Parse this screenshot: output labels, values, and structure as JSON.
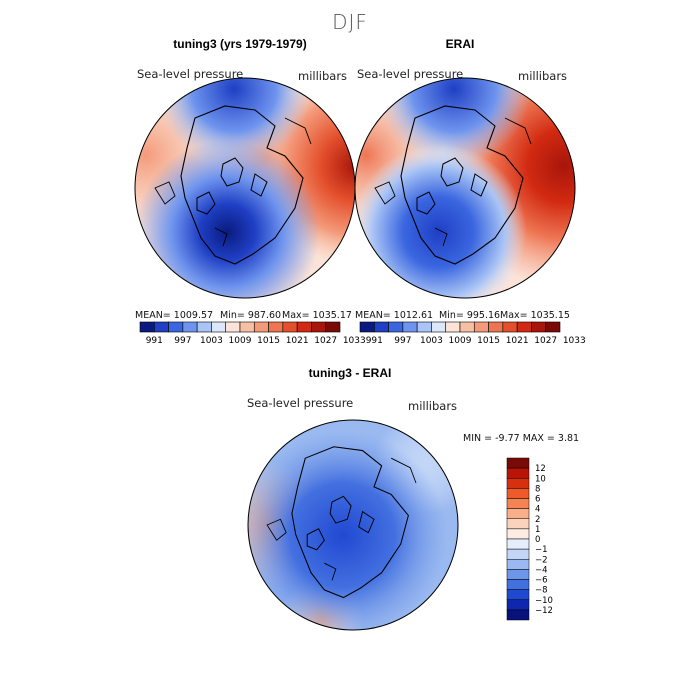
{
  "figure": {
    "season": "DJF"
  },
  "panels": [
    {
      "title": "tuning3 (yrs 1979-1979)",
      "variable": "Sea-level pressure",
      "units": "millibars",
      "stats": {
        "mean_label": "MEAN= 1009.57",
        "min_label": "Min= 987.60",
        "max_label": "Max= 1035.17"
      }
    },
    {
      "title": "ERAI",
      "variable": "Sea-level pressure",
      "units": "millibars",
      "stats": {
        "mean_label": "MEAN= 1012.61",
        "min_label": "Min= 995.16",
        "max_label": "Max= 1035.15"
      }
    },
    {
      "title": "tuning3 - ERAI",
      "variable": "Sea-level pressure",
      "units": "millibars",
      "stats": {
        "minmax_label": "MIN = -9.77 MAX = 3.81"
      }
    }
  ],
  "chart_data": [
    {
      "type": "contour-map",
      "projection": "north polar stereographic",
      "title": "tuning3 (yrs 1979-1979)",
      "variable": "Sea-level pressure",
      "units": "millibars",
      "mean": 1009.57,
      "min": 987.6,
      "max": 1035.17,
      "colorbar": {
        "tick_labels": [
          "991",
          "997",
          "1003",
          "1009",
          "1015",
          "1021",
          "1027",
          "1033"
        ],
        "colors": [
          "#0a1a80",
          "#1f3fc4",
          "#3a66e0",
          "#6e94ee",
          "#a9c4f5",
          "#dbe7fb",
          "#fbe3d8",
          "#f7bfa3",
          "#f49a7a",
          "#ee7552",
          "#e4502c",
          "#d22a12",
          "#a8150a",
          "#7a0a05"
        ]
      }
    },
    {
      "type": "contour-map",
      "projection": "north polar stereographic",
      "title": "ERAI",
      "variable": "Sea-level pressure",
      "units": "millibars",
      "mean": 1012.61,
      "min": 995.16,
      "max": 1035.15,
      "colorbar": {
        "tick_labels": [
          "991",
          "997",
          "1003",
          "1009",
          "1015",
          "1021",
          "1027",
          "1033"
        ],
        "colors": [
          "#0a1a80",
          "#1f3fc4",
          "#3a66e0",
          "#6e94ee",
          "#a9c4f5",
          "#dbe7fb",
          "#fbe3d8",
          "#f7bfa3",
          "#f49a7a",
          "#ee7552",
          "#e4502c",
          "#d22a12",
          "#a8150a",
          "#7a0a05"
        ]
      }
    },
    {
      "type": "contour-map",
      "projection": "north polar stereographic",
      "title": "tuning3 - ERAI",
      "variable": "Sea-level pressure",
      "units": "millibars",
      "min": -9.77,
      "max": 3.81,
      "colorbar": {
        "orientation": "vertical",
        "tick_labels": [
          "12",
          "10",
          "8",
          "6",
          "4",
          "2",
          "1",
          "0",
          "-1",
          "-2",
          "-4",
          "-6",
          "-8",
          "-10",
          "-12"
        ],
        "colors": [
          "#7a0a05",
          "#b81408",
          "#d8300f",
          "#ee5a2a",
          "#f58455",
          "#f7b08a",
          "#fbd3bd",
          "#fdece3",
          "#e6eefc",
          "#c3d6f7",
          "#9ab9f0",
          "#6d95e8",
          "#4370e0",
          "#2049d2",
          "#0f26b0",
          "#07127a"
        ]
      }
    }
  ]
}
